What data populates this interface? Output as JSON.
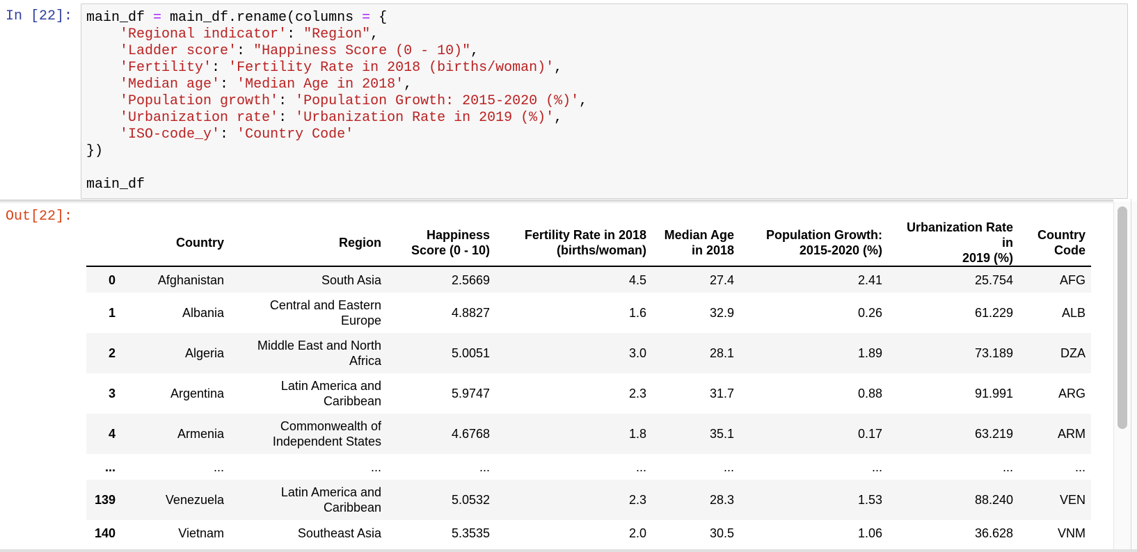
{
  "input_cell": {
    "prompt": "In [22]:",
    "code_lines": [
      [
        {
          "t": "main_df ",
          "c": ""
        },
        {
          "t": "=",
          "c": "op"
        },
        {
          "t": " main_df.rename(columns ",
          "c": ""
        },
        {
          "t": "=",
          "c": "op"
        },
        {
          "t": " {",
          "c": ""
        }
      ],
      [
        {
          "t": "    ",
          "c": ""
        },
        {
          "t": "'Regional indicator'",
          "c": "str"
        },
        {
          "t": ": ",
          "c": ""
        },
        {
          "t": "\"Region\"",
          "c": "str"
        },
        {
          "t": ",",
          "c": ""
        }
      ],
      [
        {
          "t": "    ",
          "c": ""
        },
        {
          "t": "'Ladder score'",
          "c": "str"
        },
        {
          "t": ": ",
          "c": ""
        },
        {
          "t": "\"Happiness Score (0 - 10)\"",
          "c": "str"
        },
        {
          "t": ",",
          "c": ""
        }
      ],
      [
        {
          "t": "    ",
          "c": ""
        },
        {
          "t": "'Fertility'",
          "c": "str"
        },
        {
          "t": ": ",
          "c": ""
        },
        {
          "t": "'Fertility Rate in 2018 (births/woman)'",
          "c": "str"
        },
        {
          "t": ",",
          "c": ""
        }
      ],
      [
        {
          "t": "    ",
          "c": ""
        },
        {
          "t": "'Median age'",
          "c": "str"
        },
        {
          "t": ": ",
          "c": ""
        },
        {
          "t": "'Median Age in 2018'",
          "c": "str"
        },
        {
          "t": ",",
          "c": ""
        }
      ],
      [
        {
          "t": "    ",
          "c": ""
        },
        {
          "t": "'Population growth'",
          "c": "str"
        },
        {
          "t": ": ",
          "c": ""
        },
        {
          "t": "'Population Growth: 2015-2020 (%)'",
          "c": "str"
        },
        {
          "t": ",",
          "c": ""
        }
      ],
      [
        {
          "t": "    ",
          "c": ""
        },
        {
          "t": "'Urbanization rate'",
          "c": "str"
        },
        {
          "t": ": ",
          "c": ""
        },
        {
          "t": "'Urbanization Rate in 2019 (%)'",
          "c": "str"
        },
        {
          "t": ",",
          "c": ""
        }
      ],
      [
        {
          "t": "    ",
          "c": ""
        },
        {
          "t": "'ISO-code_y'",
          "c": "str"
        },
        {
          "t": ": ",
          "c": ""
        },
        {
          "t": "'Country Code'",
          "c": "str"
        }
      ],
      [
        {
          "t": "})",
          "c": ""
        }
      ],
      [
        {
          "t": "",
          "c": ""
        }
      ],
      [
        {
          "t": "main_df",
          "c": ""
        }
      ]
    ]
  },
  "output_cell": {
    "prompt": "Out[22]:",
    "table": {
      "columns": [
        [
          "Country"
        ],
        [
          "Region"
        ],
        [
          "Happiness",
          "Score (0 - 10)"
        ],
        [
          "Fertility Rate in 2018",
          "(births/woman)"
        ],
        [
          "Median Age",
          "in 2018"
        ],
        [
          "Population Growth:",
          "2015-2020 (%)"
        ],
        [
          "Urbanization Rate in",
          "2019 (%)"
        ],
        [
          "Country",
          "Code"
        ]
      ],
      "rows": [
        {
          "index": "0",
          "cells": [
            "Afghanistan",
            [
              "South Asia"
            ],
            "2.5669",
            "4.5",
            "27.4",
            "2.41",
            "25.754",
            "AFG"
          ]
        },
        {
          "index": "1",
          "cells": [
            "Albania",
            [
              "Central and Eastern",
              "Europe"
            ],
            "4.8827",
            "1.6",
            "32.9",
            "0.26",
            "61.229",
            "ALB"
          ]
        },
        {
          "index": "2",
          "cells": [
            "Algeria",
            [
              "Middle East and North",
              "Africa"
            ],
            "5.0051",
            "3.0",
            "28.1",
            "1.89",
            "73.189",
            "DZA"
          ]
        },
        {
          "index": "3",
          "cells": [
            "Argentina",
            [
              "Latin America and",
              "Caribbean"
            ],
            "5.9747",
            "2.3",
            "31.7",
            "0.88",
            "91.991",
            "ARG"
          ]
        },
        {
          "index": "4",
          "cells": [
            "Armenia",
            [
              "Commonwealth of",
              "Independent States"
            ],
            "4.6768",
            "1.8",
            "35.1",
            "0.17",
            "63.219",
            "ARM"
          ]
        },
        {
          "index": "...",
          "cells": [
            "...",
            [
              "..."
            ],
            "...",
            "...",
            "...",
            "...",
            "...",
            "..."
          ]
        },
        {
          "index": "139",
          "cells": [
            "Venezuela",
            [
              "Latin America and",
              "Caribbean"
            ],
            "5.0532",
            "2.3",
            "28.3",
            "1.53",
            "88.240",
            "VEN"
          ]
        },
        {
          "index": "140",
          "cells": [
            "Vietnam",
            [
              "Southeast Asia"
            ],
            "5.3535",
            "2.0",
            "30.5",
            "1.06",
            "36.628",
            "VNM"
          ]
        }
      ]
    }
  }
}
